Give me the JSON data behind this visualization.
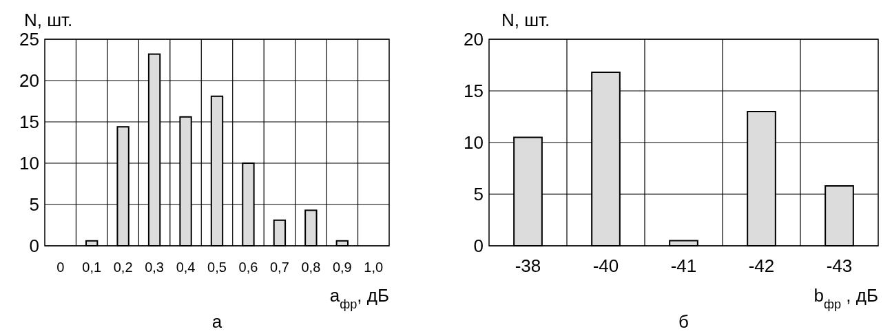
{
  "chart_data": [
    {
      "type": "bar",
      "categories": [
        "0",
        "0,1",
        "0,2",
        "0,3",
        "0,4",
        "0,5",
        "0,6",
        "0,7",
        "0,8",
        "0,9",
        "1,0"
      ],
      "values": [
        0,
        0.6,
        14.4,
        23.2,
        15.6,
        18.1,
        10,
        3.1,
        4.3,
        0.6,
        0
      ],
      "color": "#dcdcdc",
      "ylim": [
        0,
        25
      ],
      "yticks": [
        0,
        5,
        10,
        15,
        20,
        25
      ],
      "grid": true,
      "ylabel": "N, шт.",
      "xlabel": "a$_{фр}$, дБ",
      "annotations": [
        "а"
      ]
    },
    {
      "type": "bar",
      "categories": [
        "-38",
        "-40",
        "-41",
        "-42",
        "-43"
      ],
      "values": [
        10.5,
        16.8,
        0.5,
        13,
        5.8
      ],
      "color": "#dcdcdc",
      "ylim": [
        0,
        20
      ],
      "yticks": [
        0,
        5,
        10,
        15,
        20
      ],
      "grid": true,
      "ylabel": "N, шт.",
      "xlabel": "b$_{фр}$ , дБ",
      "annotations": [
        "б"
      ]
    }
  ]
}
